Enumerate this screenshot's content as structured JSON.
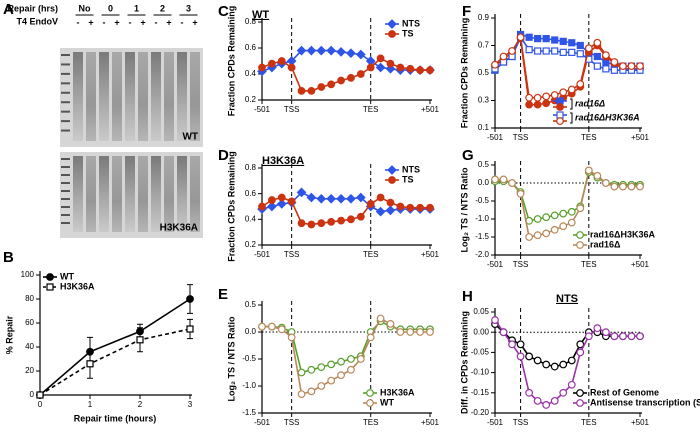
{
  "panel_labels": [
    "A",
    "B",
    "C",
    "D",
    "E",
    "F",
    "G",
    "H"
  ],
  "gel": {
    "headers": [
      "Repair (hrs)",
      "T4 EndoV"
    ],
    "times": [
      "No",
      "0",
      "1",
      "2",
      "3"
    ],
    "enzyme": [
      "-",
      "+",
      "-",
      "+",
      "-",
      "+",
      "-",
      "+",
      "-",
      "+"
    ],
    "labels": [
      "WT",
      "H3K36A"
    ]
  },
  "chart_data": [
    {
      "type": "line",
      "ylabel": "% Repair",
      "xlabel": "Repair time (hours)",
      "x": [
        0,
        1,
        2,
        3
      ],
      "xlim": [
        0,
        3
      ],
      "xticks": [
        0,
        1,
        2,
        3
      ],
      "ylim": [
        0,
        100
      ],
      "yticks": [
        0,
        20,
        40,
        60,
        80,
        100
      ],
      "legend": "upper left",
      "series": [
        {
          "name": "WT",
          "color": "#000000",
          "marker": "circle",
          "filled": true,
          "dash": false,
          "values": [
            0,
            36,
            53,
            80
          ],
          "errors": [
            0,
            12,
            6,
            12
          ]
        },
        {
          "name": "H3K36A",
          "color": "#000000",
          "marker": "square",
          "filled": false,
          "dash": true,
          "values": [
            0,
            26,
            46,
            55
          ],
          "errors": [
            0,
            12,
            10,
            8
          ]
        }
      ]
    },
    {
      "type": "line",
      "title": "WT",
      "ylabel": "Fraction CPDs Remaining",
      "categories": [
        "-501",
        null,
        null,
        "TSS",
        null,
        null,
        null,
        null,
        null,
        null,
        null,
        "TES",
        null,
        null,
        null,
        null,
        null,
        "+501"
      ],
      "ylim": [
        0.2,
        0.8
      ],
      "yticks": [
        0.2,
        0.4,
        0.6,
        0.8
      ],
      "legend": "upper right",
      "series": [
        {
          "name": "NTS",
          "color": "#2f55e8",
          "marker": "diamond",
          "filled": true,
          "values": [
            0.42,
            0.45,
            0.48,
            0.5,
            0.58,
            0.58,
            0.58,
            0.58,
            0.57,
            0.56,
            0.55,
            0.5,
            0.45,
            0.44,
            0.43,
            0.43,
            0.43,
            0.43
          ]
        },
        {
          "name": "TS",
          "color": "#cc3311",
          "marker": "circle",
          "filled": true,
          "values": [
            0.45,
            0.48,
            0.5,
            0.45,
            0.27,
            0.27,
            0.3,
            0.32,
            0.35,
            0.37,
            0.4,
            0.45,
            0.52,
            0.48,
            0.45,
            0.44,
            0.43,
            0.43
          ]
        }
      ]
    },
    {
      "type": "line",
      "title": "H3K36A",
      "ylabel": "Fraction CPDs Remaining",
      "categories": [
        "-501",
        null,
        null,
        "TSS",
        null,
        null,
        null,
        null,
        null,
        null,
        null,
        "TES",
        null,
        null,
        null,
        null,
        null,
        "+501"
      ],
      "ylim": [
        0.2,
        0.8
      ],
      "yticks": [
        0.2,
        0.4,
        0.6,
        0.8
      ],
      "legend": "upper right",
      "series": [
        {
          "name": "NTS",
          "color": "#2f55e8",
          "marker": "diamond",
          "filled": true,
          "values": [
            0.48,
            0.5,
            0.52,
            0.53,
            0.61,
            0.57,
            0.56,
            0.56,
            0.56,
            0.56,
            0.57,
            0.5,
            0.46,
            0.47,
            0.48,
            0.48,
            0.48,
            0.48
          ]
        },
        {
          "name": "TS",
          "color": "#cc3311",
          "marker": "circle",
          "filled": true,
          "values": [
            0.5,
            0.55,
            0.57,
            0.54,
            0.37,
            0.36,
            0.37,
            0.38,
            0.39,
            0.4,
            0.42,
            0.52,
            0.57,
            0.53,
            0.5,
            0.49,
            0.49,
            0.49
          ]
        }
      ]
    },
    {
      "type": "line",
      "ylabel": "Log₂ TS / NTS Ratio",
      "categories": [
        "-501",
        null,
        null,
        "TSS",
        null,
        null,
        null,
        null,
        null,
        null,
        null,
        "TES",
        null,
        null,
        null,
        null,
        null,
        "+501"
      ],
      "ylim": [
        -1.5,
        0.5
      ],
      "yticks": [
        0.5,
        {
          "value": 0,
          "label": "0.0"
        },
        -0.5,
        {
          "value": -1,
          "label": "-1.0"
        },
        -1.5
      ],
      "legend": "lower right",
      "zero_line": true,
      "series": [
        {
          "name": "H3K36A",
          "color": "#5aa02c",
          "marker": "circle",
          "filled": false,
          "values": [
            0.1,
            0.1,
            0.08,
            0,
            -0.75,
            -0.7,
            -0.65,
            -0.6,
            -0.55,
            -0.5,
            -0.45,
            0,
            0.2,
            0.1,
            0.05,
            0.05,
            0.05,
            0.05
          ]
        },
        {
          "name": "WT",
          "color": "#b8885a",
          "marker": "circle",
          "filled": false,
          "values": [
            0.1,
            0.1,
            0.05,
            -0.1,
            -1.15,
            -1.1,
            -1,
            -0.9,
            -0.8,
            -0.7,
            -0.5,
            -0.1,
            0.25,
            0.15,
            0,
            0,
            0,
            0
          ]
        }
      ]
    },
    {
      "type": "line",
      "ylabel": "Fraction CPDs Remaining",
      "categories": [
        "-501",
        null,
        null,
        "TSS",
        null,
        null,
        null,
        null,
        null,
        null,
        null,
        "TES",
        null,
        null,
        null,
        null,
        null,
        "+501"
      ],
      "ylim": [
        0.1,
        0.9
      ],
      "yticks": [
        0.1,
        0.3,
        0.5,
        0.7,
        0.9
      ],
      "legend": "lower right",
      "series": [
        {
          "name": "rad16Δ",
          "color": "#2f55e8",
          "marker": "square",
          "filled": true,
          "values": [
            0.52,
            0.58,
            0.62,
            0.78,
            0.76,
            0.75,
            0.75,
            0.74,
            0.73,
            0.72,
            0.7,
            0.65,
            0.62,
            0.58,
            0.56,
            0.55,
            0.55,
            0.55
          ]
        },
        {
          "color": "#cc3311",
          "marker": "circle",
          "filled": true,
          "values": [
            0.55,
            0.6,
            0.65,
            0.75,
            0.27,
            0.27,
            0.28,
            0.3,
            0.32,
            0.35,
            0.4,
            0.65,
            0.7,
            0.62,
            0.57,
            0.53,
            0.53,
            0.53
          ]
        },
        {
          "name": "rad16ΔH3K36A",
          "color": "#2f55e8",
          "marker": "square",
          "filled": false,
          "values": [
            0.53,
            0.58,
            0.62,
            0.76,
            0.67,
            0.66,
            0.66,
            0.66,
            0.65,
            0.65,
            0.64,
            0.6,
            0.55,
            0.53,
            0.52,
            0.52,
            0.52,
            0.52
          ]
        },
        {
          "color": "#cc3311",
          "marker": "circle",
          "filled": false,
          "values": [
            0.56,
            0.62,
            0.66,
            0.76,
            0.32,
            0.32,
            0.33,
            0.34,
            0.36,
            0.38,
            0.42,
            0.68,
            0.72,
            0.63,
            0.58,
            0.55,
            0.55,
            0.55
          ]
        }
      ]
    },
    {
      "type": "line",
      "ylabel": "Log₂ TS / NTS Ratio",
      "categories": [
        "-501",
        null,
        null,
        "TSS",
        null,
        null,
        null,
        null,
        null,
        null,
        null,
        "TES",
        null,
        null,
        null,
        null,
        null,
        "+501"
      ],
      "ylim": [
        -2,
        0.5
      ],
      "yticks": [
        0.5,
        {
          "value": 0,
          "label": "0.0"
        },
        -0.5,
        {
          "value": -1,
          "label": "-1.0"
        },
        -1.5,
        {
          "value": -2,
          "label": "-2.0"
        }
      ],
      "legend": "lower right",
      "zero_line": true,
      "series": [
        {
          "name": "rad16ΔH3K36A",
          "color": "#5aa02c",
          "marker": "circle",
          "filled": false,
          "values": [
            0.05,
            0.05,
            0,
            -0.25,
            -1.05,
            -1,
            -0.95,
            -0.9,
            -0.85,
            -0.8,
            -0.65,
            0.3,
            0.15,
            0,
            -0.05,
            -0.05,
            -0.05,
            -0.05
          ]
        },
        {
          "name": "rad16Δ",
          "color": "#b8885a",
          "marker": "circle",
          "filled": false,
          "values": [
            0.1,
            0.1,
            0,
            -0.3,
            -1.5,
            -1.45,
            -1.4,
            -1.3,
            -1.2,
            -1.1,
            -0.7,
            0.35,
            0.2,
            0,
            -0.1,
            -0.1,
            -0.1,
            -0.1
          ]
        }
      ]
    },
    {
      "type": "line",
      "title": "NTS",
      "ylabel": "Diff. in CPDs Remaining",
      "categories": [
        "-501",
        null,
        null,
        "TSS",
        null,
        null,
        null,
        null,
        null,
        null,
        null,
        "TES",
        null,
        null,
        null,
        null,
        null,
        "+501"
      ],
      "ylim": [
        -0.2,
        0.05
      ],
      "yticks": [
        0.05,
        {
          "value": 0,
          "label": "0.00"
        },
        -0.05,
        {
          "value": -0.1,
          "label": "-0.10"
        },
        -0.15,
        {
          "value": -0.2,
          "label": "-0.20"
        }
      ],
      "legend": "lower right",
      "zero_line": true,
      "series": [
        {
          "name": "Rest of Genome",
          "color": "#000000",
          "marker": "circle",
          "filled": false,
          "values": [
            0.02,
            0,
            -0.02,
            -0.03,
            -0.06,
            -0.07,
            -0.08,
            -0.085,
            -0.08,
            -0.07,
            -0.03,
            0,
            0,
            -0.01,
            -0.01,
            -0.01,
            -0.01,
            -0.01
          ]
        },
        {
          "name": "Antisense transcription (SRAT genes)",
          "color": "#9932a8",
          "marker": "circle",
          "filled": false,
          "values": [
            0.03,
            0,
            -0.03,
            -0.06,
            -0.15,
            -0.17,
            -0.18,
            -0.17,
            -0.15,
            -0.13,
            -0.05,
            -0.01,
            0.01,
            0,
            -0.01,
            -0.01,
            -0.01,
            -0.01
          ]
        }
      ]
    }
  ]
}
